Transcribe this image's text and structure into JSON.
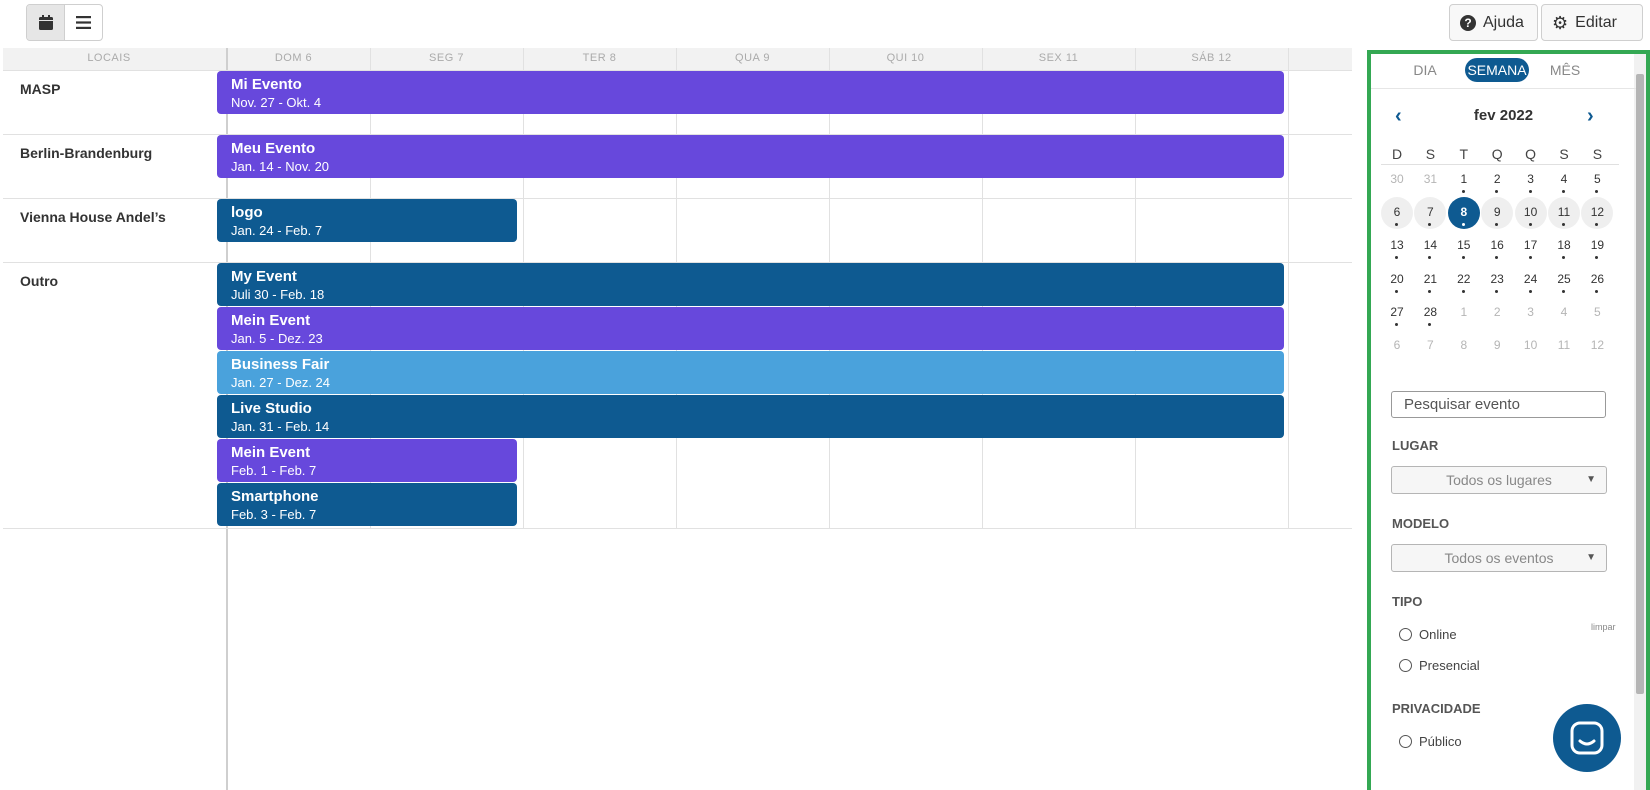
{
  "toolbar": {
    "calendar_icon": "calendar-icon",
    "list_icon": "list-icon",
    "help_label": "Ajuda",
    "help_icon": "question-circle-icon",
    "edit_label": "Editar",
    "edit_icon": "gear-icon"
  },
  "schedule": {
    "locations_header": "LOCAIS",
    "days": [
      "DOM 6",
      "SEG 7",
      "TER 8",
      "QUA 9",
      "QUI 10",
      "SEX 11",
      "SÁB 12"
    ],
    "rows": [
      {
        "label": "MASP",
        "events": [
          {
            "name": "Mi Evento",
            "dates": "Nov. 27 - Okt. 4",
            "color": "#6748dc",
            "span": "full"
          }
        ]
      },
      {
        "label": "Berlin-Brandenburg",
        "events": [
          {
            "name": "Meu Evento",
            "dates": "Jan. 14 - Nov. 20",
            "color": "#6748dc",
            "span": "full"
          }
        ]
      },
      {
        "label": "Vienna House Andel’s",
        "events": [
          {
            "name": "logo",
            "dates": "Jan. 24 - Feb. 7",
            "color": "#0e5a91",
            "span": "partial"
          }
        ]
      },
      {
        "label": "Outro",
        "events": [
          {
            "name": "My Event",
            "dates": "Juli 30 - Feb. 18",
            "color": "#0e5a91",
            "span": "full"
          },
          {
            "name": "Mein Event",
            "dates": "Jan. 5 - Dez. 23",
            "color": "#6748dc",
            "span": "full"
          },
          {
            "name": "Business Fair",
            "dates": "Jan. 27 - Dez. 24",
            "color": "#4aa2dc",
            "span": "full"
          },
          {
            "name": "Live Studio",
            "dates": "Jan. 31 - Feb. 14",
            "color": "#0e5a91",
            "span": "full"
          },
          {
            "name": "Mein Event",
            "dates": "Feb. 1 - Feb. 7",
            "color": "#6748dc",
            "span": "partial"
          },
          {
            "name": "Smartphone",
            "dates": "Feb. 3 - Feb. 7",
            "color": "#0e5a91",
            "span": "partial"
          }
        ]
      }
    ]
  },
  "sidebar": {
    "view_tabs": [
      "DIA",
      "SEMANA",
      "MÊS"
    ],
    "active_view": "SEMANA",
    "month_title": "fev 2022",
    "prev_icon": "chevron-left-icon",
    "next_icon": "chevron-right-icon",
    "weekdays": [
      "D",
      "S",
      "T",
      "Q",
      "Q",
      "S",
      "S"
    ],
    "weeks": [
      [
        "30",
        "31",
        "1",
        "2",
        "3",
        "4",
        "5"
      ],
      [
        "6",
        "7",
        "8",
        "9",
        "10",
        "11",
        "12"
      ],
      [
        "13",
        "14",
        "15",
        "16",
        "17",
        "18",
        "19"
      ],
      [
        "20",
        "21",
        "22",
        "23",
        "24",
        "25",
        "26"
      ],
      [
        "27",
        "28",
        "1",
        "2",
        "3",
        "4",
        "5"
      ],
      [
        "6",
        "7",
        "8",
        "9",
        "10",
        "11",
        "12"
      ]
    ],
    "selected_day": "8",
    "search_placeholder": "Pesquisar evento",
    "lugar_label": "LUGAR",
    "lugar_value": "Todos os lugares",
    "modelo_label": "MODELO",
    "modelo_value": "Todos os eventos",
    "tipo_label": "TIPO",
    "limpar_label": "limpar",
    "tipo_options": [
      "Online",
      "Presencial"
    ],
    "privacidade_label": "PRIVACIDADE",
    "privacidade_options": [
      "Público"
    ]
  },
  "chat": {
    "icon": "chat-bubble-icon"
  },
  "colors": {
    "accent": "#0e5a91",
    "purple": "#6748dc",
    "light_blue": "#4aa2dc",
    "sidebar_border": "#34a853"
  }
}
